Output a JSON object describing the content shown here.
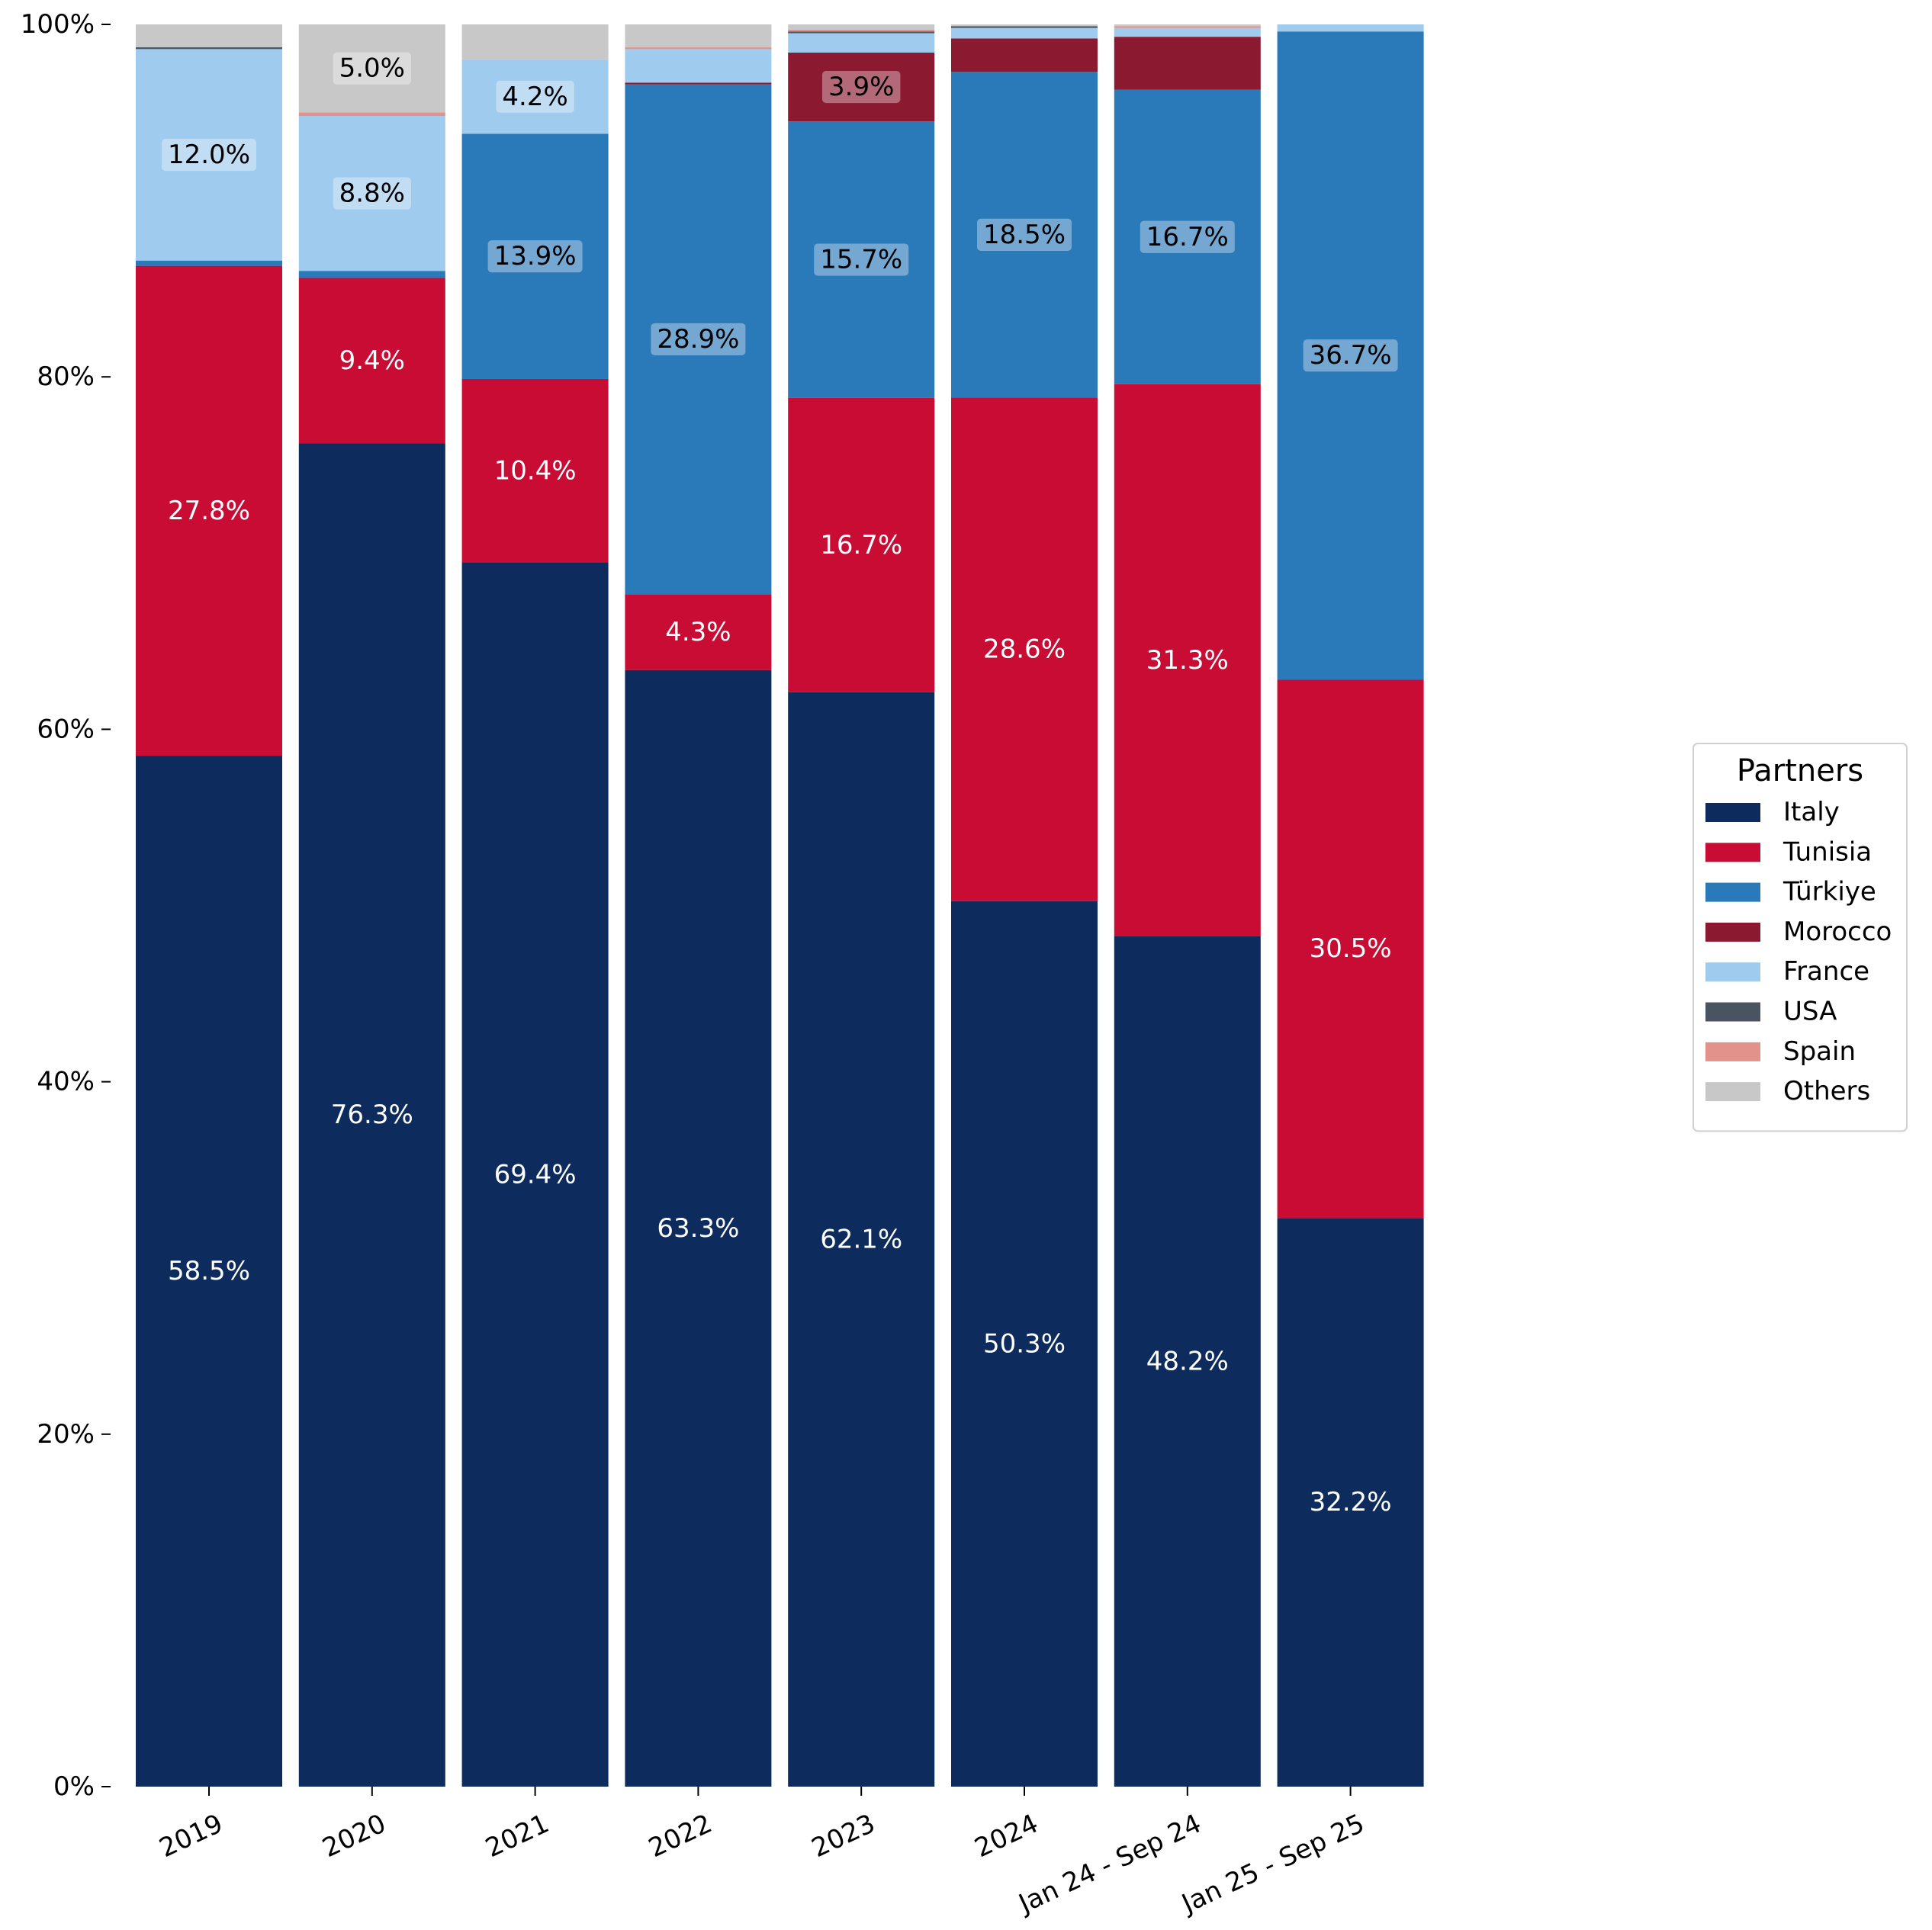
{
  "chart_data": {
    "type": "bar",
    "stacked": true,
    "normalized": true,
    "title": "",
    "xlabel": "",
    "ylabel": "",
    "ylim": [
      0,
      100
    ],
    "y_ticks": [
      "0%",
      "20%",
      "40%",
      "60%",
      "80%",
      "100%"
    ],
    "y_tick_values": [
      0,
      20,
      40,
      60,
      80,
      100
    ],
    "grid": false,
    "categories": [
      "2019",
      "2020",
      "2021",
      "2022",
      "2023",
      "2024",
      "Jan 24 - Sep 24",
      "Jan 25 - Sep 25"
    ],
    "legend": {
      "title": "Partners",
      "placement": "right"
    },
    "series": [
      {
        "name": "Italy",
        "color": "#0d2b5c",
        "label_color": "#ffffff",
        "label_box": false,
        "values": [
          58.5,
          76.3,
          69.4,
          63.3,
          62.1,
          50.3,
          48.2,
          32.2
        ]
      },
      {
        "name": "Tunisia",
        "color": "#c80c34",
        "label_color": "#ffffff",
        "label_box": false,
        "values": [
          27.8,
          9.4,
          10.4,
          4.3,
          16.7,
          28.6,
          31.3,
          30.5
        ]
      },
      {
        "name": "Türkiye",
        "color": "#2a7aba",
        "label_color": "#000000",
        "label_box": true,
        "values": [
          0.3,
          0.4,
          13.9,
          28.9,
          15.7,
          18.5,
          16.7,
          36.7
        ]
      },
      {
        "name": "Morocco",
        "color": "#8b1a30",
        "label_color": "#000000",
        "label_box": true,
        "values": [
          0.0,
          0.0,
          0.0,
          0.1,
          3.9,
          1.9,
          3.0,
          0.0
        ]
      },
      {
        "name": "France",
        "color": "#9ecbee",
        "label_color": "#000000",
        "label_box": true,
        "values": [
          12.0,
          8.8,
          4.2,
          1.9,
          1.1,
          0.6,
          0.5,
          0.4
        ]
      },
      {
        "name": "USA",
        "color": "#4a5360",
        "label_color": "#000000",
        "label_box": true,
        "values": [
          0.1,
          0.0,
          0.0,
          0.0,
          0.1,
          0.1,
          0.0,
          0.0
        ]
      },
      {
        "name": "Spain",
        "color": "#e2918b",
        "label_color": "#000000",
        "label_box": true,
        "values": [
          0.0,
          0.2,
          0.0,
          0.1,
          0.1,
          0.0,
          0.1,
          0.0
        ]
      },
      {
        "name": "Others",
        "color": "#c8c8c8",
        "label_color": "#000000",
        "label_box": true,
        "values": [
          1.3,
          5.0,
          2.0,
          1.3,
          0.3,
          0.1,
          0.1,
          0.0
        ]
      }
    ],
    "data_labels": [
      {
        "series": "Italy",
        "category": "2019",
        "text": "58.5%"
      },
      {
        "series": "Tunisia",
        "category": "2019",
        "text": "27.8%"
      },
      {
        "series": "France",
        "category": "2019",
        "text": "12.0%"
      },
      {
        "series": "Italy",
        "category": "2020",
        "text": "76.3%"
      },
      {
        "series": "Tunisia",
        "category": "2020",
        "text": "9.4%"
      },
      {
        "series": "France",
        "category": "2020",
        "text": "8.8%"
      },
      {
        "series": "Others",
        "category": "2020",
        "text": "5.0%"
      },
      {
        "series": "Italy",
        "category": "2021",
        "text": "69.4%"
      },
      {
        "series": "Tunisia",
        "category": "2021",
        "text": "10.4%"
      },
      {
        "series": "Türkiye",
        "category": "2021",
        "text": "13.9%"
      },
      {
        "series": "France",
        "category": "2021",
        "text": "4.2%"
      },
      {
        "series": "Italy",
        "category": "2022",
        "text": "63.3%"
      },
      {
        "series": "Tunisia",
        "category": "2022",
        "text": "4.3%"
      },
      {
        "series": "Türkiye",
        "category": "2022",
        "text": "28.9%"
      },
      {
        "series": "Italy",
        "category": "2023",
        "text": "62.1%"
      },
      {
        "series": "Tunisia",
        "category": "2023",
        "text": "16.7%"
      },
      {
        "series": "Türkiye",
        "category": "2023",
        "text": "15.7%"
      },
      {
        "series": "Morocco",
        "category": "2023",
        "text": "3.9%"
      },
      {
        "series": "Italy",
        "category": "2024",
        "text": "50.3%"
      },
      {
        "series": "Tunisia",
        "category": "2024",
        "text": "28.6%"
      },
      {
        "series": "Türkiye",
        "category": "2024",
        "text": "18.5%"
      },
      {
        "series": "Italy",
        "category": "Jan 24 - Sep 24",
        "text": "48.2%"
      },
      {
        "series": "Tunisia",
        "category": "Jan 24 - Sep 24",
        "text": "31.3%"
      },
      {
        "series": "Türkiye",
        "category": "Jan 24 - Sep 24",
        "text": "16.7%"
      },
      {
        "series": "Italy",
        "category": "Jan 25 - Sep 25",
        "text": "32.2%"
      },
      {
        "series": "Tunisia",
        "category": "Jan 25 - Sep 25",
        "text": "30.5%"
      },
      {
        "series": "Türkiye",
        "category": "Jan 25 - Sep 25",
        "text": "36.7%"
      }
    ]
  }
}
